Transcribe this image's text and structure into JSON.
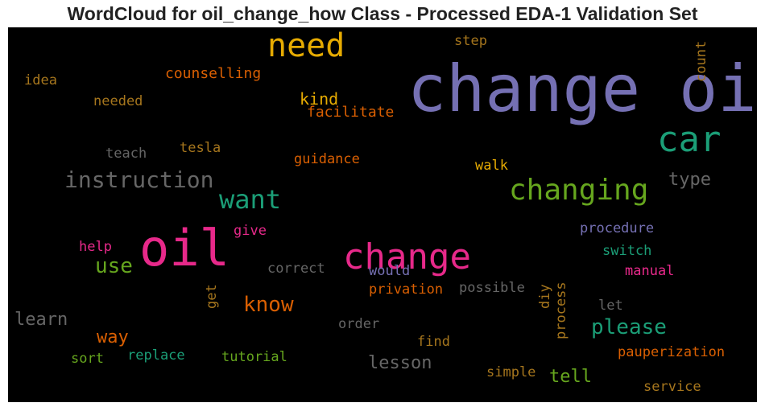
{
  "chart_data": {
    "type": "wordcloud",
    "title": "WordCloud for oil_change_how Class - Processed EDA-1 Validation Set",
    "background": "#000000",
    "words": [
      {
        "text": "change oil",
        "size": 80,
        "color": "#7570b3"
      },
      {
        "text": "oil",
        "size": 62,
        "color": "#e7298a"
      },
      {
        "text": "change",
        "size": 44,
        "color": "#e7298a"
      },
      {
        "text": "need",
        "size": 40,
        "color": "#e6ab02"
      },
      {
        "text": "car",
        "size": 44,
        "color": "#1b9e77"
      },
      {
        "text": "changing",
        "size": 36,
        "color": "#66a61e"
      },
      {
        "text": "want",
        "size": 32,
        "color": "#1b9e77"
      },
      {
        "text": "instruction",
        "size": 28,
        "color": "#666666"
      },
      {
        "text": "know",
        "size": 26,
        "color": "#d95f02"
      },
      {
        "text": "please",
        "size": 26,
        "color": "#1b9e77"
      },
      {
        "text": "use",
        "size": 26,
        "color": "#66a61e"
      },
      {
        "text": "learn",
        "size": 22,
        "color": "#666666"
      },
      {
        "text": "way",
        "size": 22,
        "color": "#d95f02"
      },
      {
        "text": "lesson",
        "size": 22,
        "color": "#666666"
      },
      {
        "text": "tell",
        "size": 22,
        "color": "#66a61e"
      },
      {
        "text": "type",
        "size": 22,
        "color": "#666666"
      },
      {
        "text": "kind",
        "size": 20,
        "color": "#e6ab02"
      },
      {
        "text": "counselling",
        "size": 18,
        "color": "#d95f02"
      },
      {
        "text": "facilitate",
        "size": 18,
        "color": "#d95f02"
      },
      {
        "text": "guidance",
        "size": 17,
        "color": "#d95f02"
      },
      {
        "text": "tesla",
        "size": 17,
        "color": "#a6761d"
      },
      {
        "text": "teach",
        "size": 17,
        "color": "#666666"
      },
      {
        "text": "idea",
        "size": 17,
        "color": "#a6761d"
      },
      {
        "text": "needed",
        "size": 17,
        "color": "#a6761d"
      },
      {
        "text": "step",
        "size": 17,
        "color": "#a6761d"
      },
      {
        "text": "count",
        "size": 17,
        "color": "#a6761d"
      },
      {
        "text": "walk",
        "size": 17,
        "color": "#e6ab02"
      },
      {
        "text": "procedure",
        "size": 17,
        "color": "#7570b3"
      },
      {
        "text": "switch",
        "size": 17,
        "color": "#1b9e77"
      },
      {
        "text": "manual",
        "size": 17,
        "color": "#e7298a"
      },
      {
        "text": "help",
        "size": 17,
        "color": "#e7298a"
      },
      {
        "text": "give",
        "size": 17,
        "color": "#e7298a"
      },
      {
        "text": "correct",
        "size": 17,
        "color": "#666666"
      },
      {
        "text": "would",
        "size": 17,
        "color": "#7570b3"
      },
      {
        "text": "privation",
        "size": 17,
        "color": "#d95f02"
      },
      {
        "text": "possible",
        "size": 17,
        "color": "#666666"
      },
      {
        "text": "get",
        "size": 17,
        "color": "#a6761d"
      },
      {
        "text": "diy",
        "size": 17,
        "color": "#a6761d"
      },
      {
        "text": "process",
        "size": 17,
        "color": "#a6761d"
      },
      {
        "text": "let",
        "size": 17,
        "color": "#666666"
      },
      {
        "text": "order",
        "size": 17,
        "color": "#666666"
      },
      {
        "text": "find",
        "size": 17,
        "color": "#a6761d"
      },
      {
        "text": "pauperization",
        "size": 17,
        "color": "#d95f02"
      },
      {
        "text": "sort",
        "size": 17,
        "color": "#66a61e"
      },
      {
        "text": "replace",
        "size": 17,
        "color": "#1b9e77"
      },
      {
        "text": "tutorial",
        "size": 17,
        "color": "#66a61e"
      },
      {
        "text": "simple",
        "size": 17,
        "color": "#a6761d"
      },
      {
        "text": "service",
        "size": 17,
        "color": "#a6761d"
      }
    ]
  }
}
